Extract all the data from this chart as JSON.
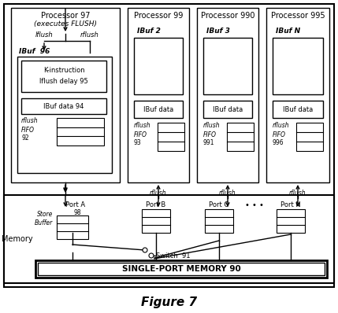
{
  "title": "Figure 7",
  "memory_label": "SINGLE-PORT MEMORY 90",
  "switch_label": "Switch  91",
  "memory_side_label": "Memory",
  "store_buffer_label": "Store\nBuffer",
  "store_buffer_num": "98",
  "kinstr_label1": "K-instruction",
  "kinstr_label2": "lflush delay 95",
  "lflush_label": "lflush",
  "rflush_label": "rflush",
  "dots_label": "• • •",
  "ibuf96_label": "IBuf  96",
  "ibuf_data_94": "IBuf data 94",
  "proc97_line1": "Processor 97",
  "proc97_line2": "(executes FLUSH)",
  "proc99": "Processor 99",
  "proc990": "Processor 990",
  "proc995": "Processor 995",
  "ibuf2": "IBuf 2",
  "ibuf3": "IBuf 3",
  "ibufN": "IBuf N",
  "ibuf_data": "IBuf data",
  "fifo92": "92",
  "fifo93": "93",
  "fifo991": "991",
  "fifo996": "996",
  "portA": "Port A",
  "portB": "Port B",
  "portC": "Port C",
  "portN": "Port N"
}
